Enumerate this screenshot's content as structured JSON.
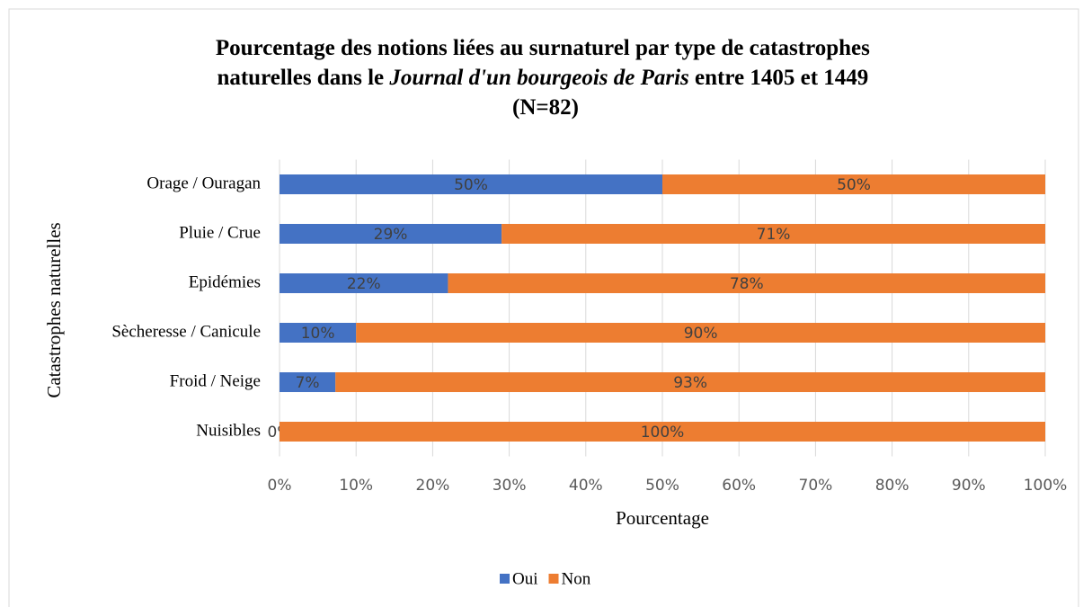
{
  "chart_data": {
    "type": "stacked_bar_horizontal",
    "title": [
      "Pourcentage des notions liées au surnaturel par type de catastrophes",
      "naturelles dans le ",
      "Journal d'un bourgeois de Paris",
      " entre 1405 et 1449",
      "(N=82)"
    ],
    "x_label": "Pourcentage",
    "y_label": "Catastrophes naturelles",
    "categories": [
      "Orage / Ouragan",
      "Pluie / Crue",
      "Epidémies",
      "Sècheresse / Canicule",
      "Froid / Neige",
      "Nuisibles"
    ],
    "series": [
      {
        "name": "Oui",
        "color": "#4472c4",
        "values": [
          50,
          29,
          22,
          10,
          7.3,
          0
        ],
        "value_labels": [
          "50%",
          "29%",
          "22%",
          "10%",
          "7%",
          "0%"
        ]
      },
      {
        "name": "Non",
        "color": "#ed7d31",
        "values": [
          50,
          71,
          78,
          90,
          92.7,
          100
        ],
        "value_labels": [
          "50%",
          "71%",
          "78%",
          "90%",
          "93%",
          "100%"
        ]
      }
    ],
    "xlim": [
      0,
      100
    ],
    "xticks": [
      {
        "value": 0,
        "label": "0%"
      },
      {
        "value": 10,
        "label": "10%"
      },
      {
        "value": 20,
        "label": "20%"
      },
      {
        "value": 30,
        "label": "30%"
      },
      {
        "value": 40,
        "label": "40%"
      },
      {
        "value": 50,
        "label": "50%"
      },
      {
        "value": 60,
        "label": "60%"
      },
      {
        "value": 70,
        "label": "70%"
      },
      {
        "value": 80,
        "label": "80%"
      },
      {
        "value": 90,
        "label": "90%"
      },
      {
        "value": 100,
        "label": "100%"
      }
    ],
    "grid": true,
    "legend": "bottom"
  }
}
